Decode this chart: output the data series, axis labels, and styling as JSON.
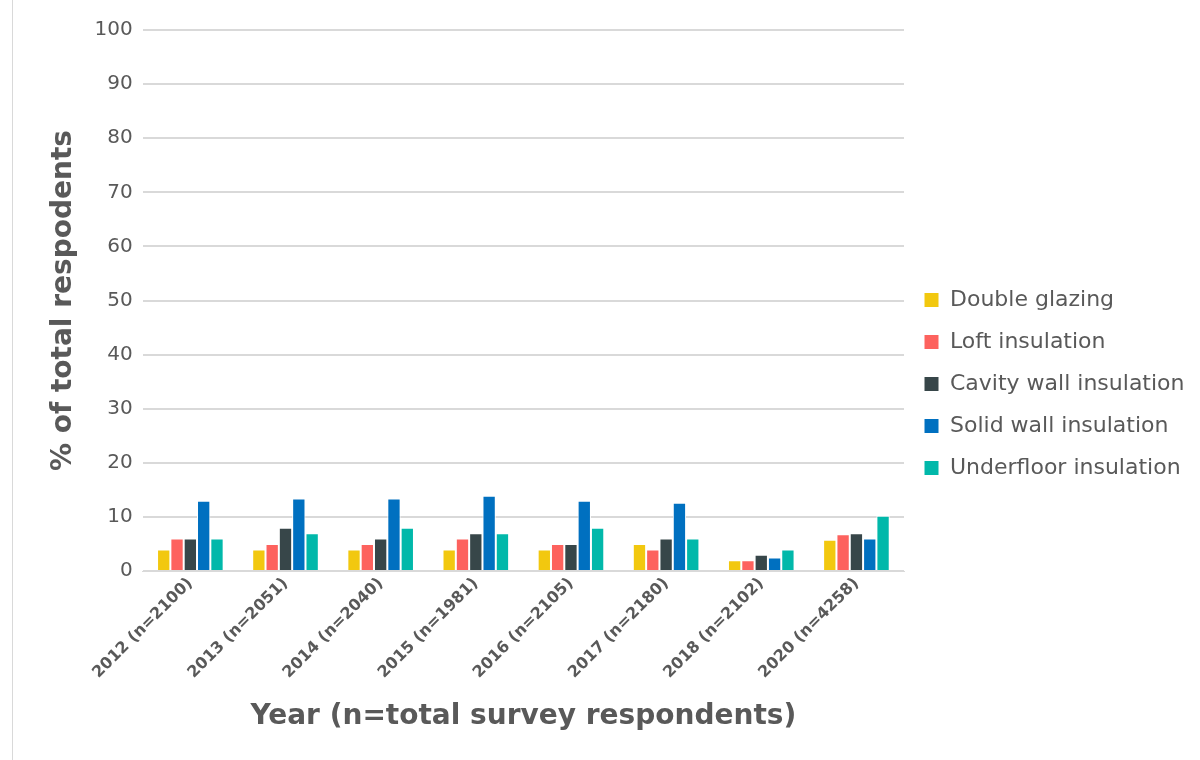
{
  "chart_data": {
    "type": "bar",
    "xlabel": "Year (n=total survey respondents)",
    "ylabel": "% of total respodents",
    "categories": [
      "2012 (n=2100)",
      "2013 (n=2051)",
      "2014 (n=2040)",
      "2015 (n=1981)",
      "2016 (n=2105)",
      "2017 (n=2180)",
      "2018 (n=2102)",
      "2020 (n=4258)"
    ],
    "series": [
      {
        "name": "Double glazing",
        "color": "#f2c80f",
        "values": [
          4,
          4,
          4,
          4,
          4,
          5,
          2,
          5.8
        ]
      },
      {
        "name": "Loft insulation",
        "color": "#fd625e",
        "values": [
          6,
          5,
          5,
          6,
          5,
          4,
          2,
          6.8
        ]
      },
      {
        "name": "Cavity wall insulation",
        "color": "#374649",
        "values": [
          6,
          8,
          6,
          7,
          5,
          6,
          3,
          7
        ]
      },
      {
        "name": "Solid wall insulation",
        "color": "#0070c0",
        "values": [
          13,
          13.4,
          13.4,
          13.9,
          13,
          12.6,
          2.5,
          6
        ]
      },
      {
        "name": "Underfloor insulation",
        "color": "#01b8aa",
        "values": [
          6,
          7,
          8,
          7,
          8,
          6,
          4,
          10.2
        ]
      }
    ],
    "ylim": [
      0,
      100
    ],
    "yticks": [
      0,
      10,
      20,
      30,
      40,
      50,
      60,
      70,
      80,
      90,
      100
    ],
    "grid": "y",
    "legend": "right"
  }
}
